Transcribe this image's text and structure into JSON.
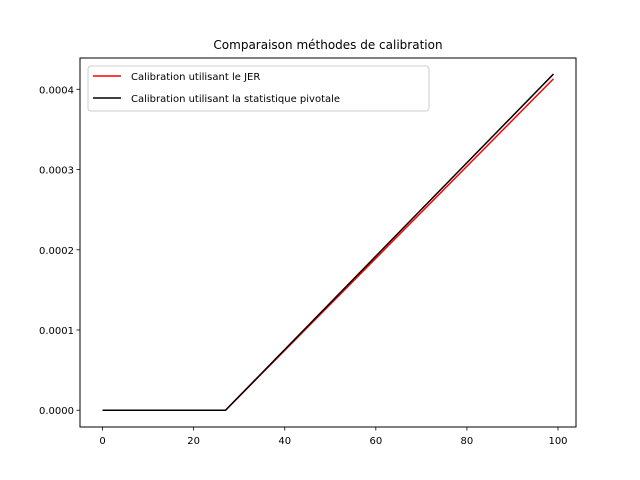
{
  "chart_data": {
    "type": "line",
    "title": "Comparaison méthodes de calibration",
    "xlabel": "",
    "ylabel": "",
    "xlim": [
      -4.95,
      103.95
    ],
    "ylim": [
      -2.09e-05,
      0.000439
    ],
    "xticks": [
      0,
      20,
      40,
      60,
      80,
      100
    ],
    "xtick_labels": [
      "0",
      "20",
      "40",
      "60",
      "80",
      "100"
    ],
    "yticks": [
      0,
      0.0001,
      0.0002,
      0.0003,
      0.0004
    ],
    "ytick_labels": [
      "0.0000",
      "0.0001",
      "0.0002",
      "0.0003",
      "0.0004"
    ],
    "grid": false,
    "legend_position": "upper left",
    "series": [
      {
        "name": "Calibration utilisant le JER",
        "color": "#ff0000",
        "x": [
          0,
          27,
          99
        ],
        "y": [
          0,
          0,
          0.000413
        ]
      },
      {
        "name": "Calibration utilisant la statistique pivotale",
        "color": "#000000",
        "x": [
          0,
          27,
          99
        ],
        "y": [
          0,
          0,
          0.000419
        ]
      }
    ]
  }
}
